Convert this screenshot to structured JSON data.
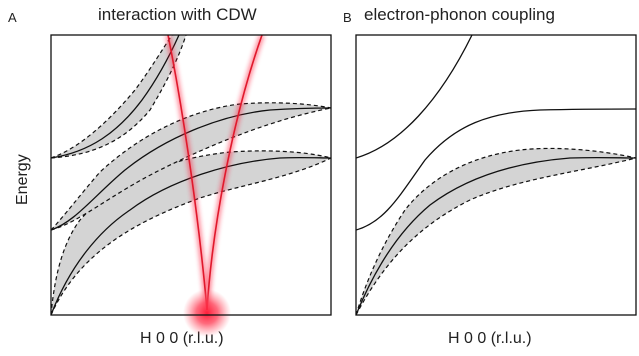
{
  "panels": [
    {
      "letter": "A",
      "title": "interaction with CDW",
      "xlabel": "H 0 0 (r.l.u.)",
      "ylabel": "Energy"
    },
    {
      "letter": "B",
      "title": "electron-phonon coupling",
      "xlabel": "H 0 0 (r.l.u.)",
      "ylabel": ""
    }
  ],
  "colors": {
    "band_fill": "#d4d4d4",
    "curve": "#111111",
    "cdw_line": "#e0192c",
    "cdw_glow": "#ff1f3a"
  }
}
